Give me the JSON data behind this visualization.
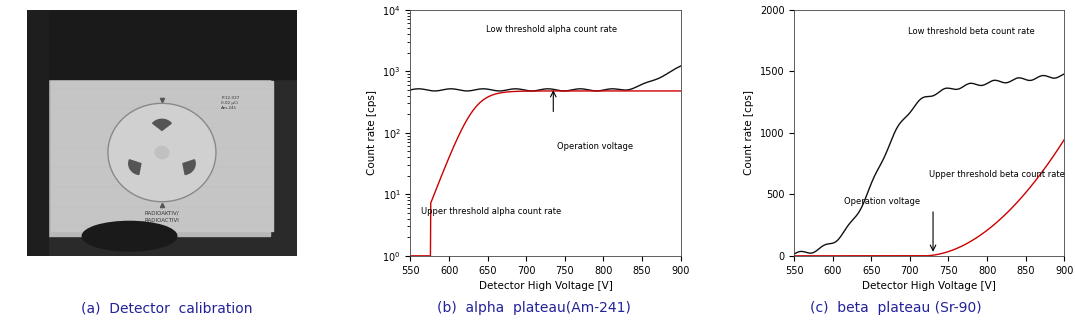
{
  "fig_width": 10.75,
  "fig_height": 3.28,
  "dpi": 100,
  "bg_color": "#ffffff",
  "alpha_chart": {
    "xlabel": "Detector High Voltage [V]",
    "ylabel": "Count rate [cps]",
    "xmin": 550,
    "xmax": 900,
    "ymin": 1,
    "ymax": 10000,
    "xticks": [
      550,
      600,
      650,
      700,
      750,
      800,
      850,
      900
    ],
    "op_voltage": 735,
    "label_low": "Low threshold alpha count rate",
    "label_upper": "Upper threshold alpha count rate",
    "label_op": "Operation voltage",
    "low_color": "#111111",
    "upper_color": "#cc0000",
    "caption": "(b)  alpha  plateau(Am-241)"
  },
  "beta_chart": {
    "xlabel": "Detector High Voltage [V]",
    "ylabel": "Count rate [cps]",
    "xmin": 550,
    "xmax": 900,
    "ymin": 0,
    "ymax": 2000,
    "xticks": [
      550,
      600,
      650,
      700,
      750,
      800,
      850,
      900
    ],
    "yticks": [
      0,
      500,
      1000,
      1500,
      2000
    ],
    "op_voltage": 730,
    "label_low": "Low threshold beta count rate",
    "label_upper": "Upper threshold beta count rate",
    "label_op": "Operation voltage",
    "low_color": "#111111",
    "upper_color": "#cc0000",
    "caption": "(c)  beta  plateau (Sr-90)"
  },
  "caption_a": "(a)  Detector  calibration",
  "caption_fontsize": 10,
  "caption_color": "#222299"
}
